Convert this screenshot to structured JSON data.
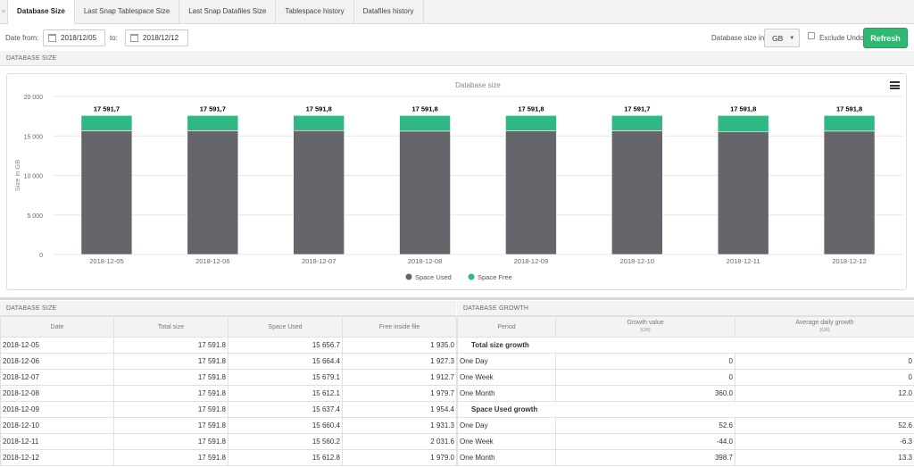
{
  "tabs": [
    "Database Size",
    "Last Snap Tablespace Size",
    "Last Snap Datafiles Size",
    "Tablespace history",
    "Datafiles history"
  ],
  "filters": {
    "date_from_label": "Date from:",
    "date_from": "2018/12/05",
    "to_label": "to:",
    "date_to": "2018/12/12",
    "size_in_label": "Database size in",
    "size_unit": "GB",
    "exclude_undo_label": "Exclude Undo",
    "refresh_label": "Refresh"
  },
  "section_titles": {
    "chart": "DATABASE SIZE",
    "size_table": "DATABASE SIZE",
    "growth_table": "DATABASE GROWTH"
  },
  "colors": {
    "accent": "#2eb872",
    "space_used": "#65666b",
    "space_free": "#2fb883"
  },
  "chart_data": {
    "type": "bar",
    "stacked": true,
    "title": "Database size",
    "ylabel": "Size in GB",
    "xlabel": "",
    "ylim": [
      0,
      20000
    ],
    "yticks": [
      0,
      5000,
      10000,
      15000,
      20000
    ],
    "ytick_labels": [
      "0",
      "5 000",
      "10 000",
      "15 000",
      "20 000"
    ],
    "categories": [
      "2018-12-05",
      "2018-12-06",
      "2018-12-07",
      "2018-12-08",
      "2018-12-09",
      "2018-12-10",
      "2018-12-11",
      "2018-12-12"
    ],
    "series": [
      {
        "name": "Space Used",
        "color": "#65666b",
        "values": [
          15656.7,
          15664.4,
          15679.1,
          15612.1,
          15637.4,
          15660.4,
          15560.2,
          15612.8
        ]
      },
      {
        "name": "Space Free",
        "color": "#2fb883",
        "values": [
          1935.0,
          1927.3,
          1912.7,
          1979.7,
          1954.4,
          1931.3,
          2031.6,
          1979.0
        ]
      }
    ],
    "total_labels": [
      "17 591,7",
      "17 591,7",
      "17 591,8",
      "17 591,8",
      "17 591,8",
      "17 591,7",
      "17 591,8",
      "17 591,8"
    ],
    "legend_position": "bottom-center",
    "grid": true
  },
  "size_table": {
    "headers": [
      "Date",
      "Total size",
      "Space Used",
      "Free inside file"
    ],
    "rows": [
      [
        "2018-12-05",
        "17 591.8",
        "15 656.7",
        "1 935.0"
      ],
      [
        "2018-12-06",
        "17 591.8",
        "15 664.4",
        "1 927.3"
      ],
      [
        "2018-12-07",
        "17 591.8",
        "15 679.1",
        "1 912.7"
      ],
      [
        "2018-12-08",
        "17 591.8",
        "15 612.1",
        "1 979.7"
      ],
      [
        "2018-12-09",
        "17 591.8",
        "15 637.4",
        "1 954.4"
      ],
      [
        "2018-12-10",
        "17 591.8",
        "15 660.4",
        "1 931.3"
      ],
      [
        "2018-12-11",
        "17 591.8",
        "15 560.2",
        "2 031.6"
      ],
      [
        "2018-12-12",
        "17 591.8",
        "15 612.8",
        "1 979.0"
      ]
    ]
  },
  "growth_table": {
    "headers": [
      "Period",
      "Growth value",
      "Average daily growth"
    ],
    "unit": "[GB]",
    "rows": [
      {
        "group": "Total size growth"
      },
      {
        "period": "One Day",
        "growth": "0",
        "avg": "0"
      },
      {
        "period": "One Week",
        "growth": "0",
        "avg": "0"
      },
      {
        "period": "One Month",
        "growth": "360.0",
        "avg": "12.0"
      },
      {
        "group": "Space Used growth"
      },
      {
        "period": "One Day",
        "growth": "52.6",
        "avg": "52.6"
      },
      {
        "period": "One Week",
        "growth": "-44.0",
        "avg": "-6.3"
      },
      {
        "period": "One Month",
        "growth": "398.7",
        "avg": "13.3"
      }
    ]
  }
}
